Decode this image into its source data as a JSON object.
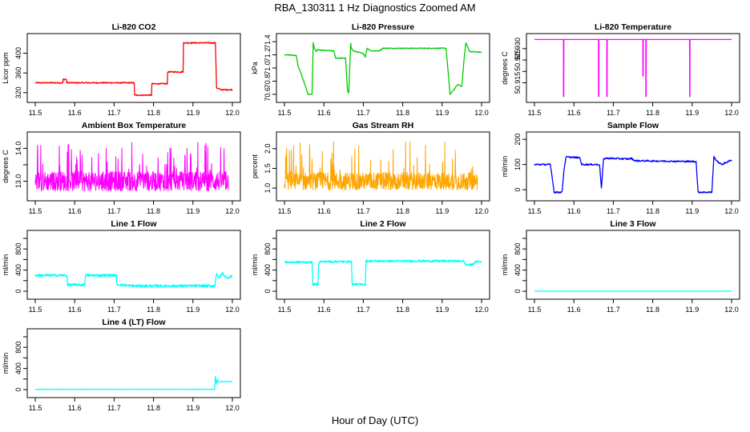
{
  "page": {
    "title": "RBA_130311  1 Hz Diagnostics Zoomed AM",
    "x_axis_title": "Hour of Day (UTC)"
  },
  "chart_data": [
    {
      "type": "line",
      "title": "Li-820 CO2",
      "ylabel": "Licor ppm",
      "color": "#ff0000",
      "xlim": [
        11.5,
        12.0
      ],
      "ylim": [
        310,
        430
      ],
      "xticks": [
        11.5,
        11.6,
        11.7,
        11.8,
        11.9,
        12.0
      ],
      "yticks": [
        320,
        360,
        400
      ],
      "xticklabels": [
        "11.5",
        "11.6",
        "11.7",
        "11.8",
        "11.9",
        "12.0"
      ],
      "yticklabels": [
        "320",
        "360",
        "400"
      ],
      "noise": 1.2,
      "series": [
        {
          "x": [
            11.5,
            11.57,
            11.571,
            11.579,
            11.58,
            11.751,
            11.752,
            11.795,
            11.796,
            11.835,
            11.836,
            11.875,
            11.876,
            11.957,
            11.96,
            11.97,
            12.0
          ],
          "y": [
            340,
            340,
            347,
            347,
            340,
            340,
            315,
            315,
            338,
            338,
            362,
            362,
            421,
            421,
            330,
            326,
            326
          ]
        }
      ]
    },
    {
      "type": "line",
      "title": "Li-820 Pressure",
      "ylabel": "kPa",
      "color": "#00cc00",
      "xlim": [
        11.5,
        12.0
      ],
      "ylim": [
        70.55,
        71.45
      ],
      "xticks": [
        11.5,
        11.6,
        11.7,
        11.8,
        11.9,
        12.0
      ],
      "yticks": [
        70.6,
        70.8,
        71.0,
        71.2,
        71.4
      ],
      "xticklabels": [
        "11.5",
        "11.6",
        "11.7",
        "11.8",
        "11.9",
        "12.0"
      ],
      "yticklabels": [
        "70.6",
        "70.8",
        "71.0",
        "71.2",
        "71.4"
      ],
      "noise": 0.006,
      "series": [
        {
          "x": [
            11.5,
            11.51,
            11.53,
            11.535,
            11.54,
            11.56,
            11.57,
            11.573,
            11.576,
            11.58,
            11.585,
            11.59,
            11.625,
            11.63,
            11.655,
            11.66,
            11.663,
            11.668,
            11.67,
            11.675,
            11.7,
            11.705,
            11.71,
            11.72,
            11.74,
            11.75,
            11.91,
            11.915,
            11.92,
            11.94,
            11.95,
            11.955,
            11.96,
            11.97,
            12.0
          ],
          "y": [
            71.2,
            71.2,
            71.19,
            71.02,
            70.95,
            70.6,
            70.6,
            71.38,
            71.3,
            71.25,
            71.28,
            71.27,
            71.26,
            71.15,
            71.15,
            70.65,
            70.62,
            71.38,
            71.3,
            71.26,
            71.22,
            71.17,
            71.3,
            71.26,
            71.26,
            71.3,
            71.3,
            70.95,
            70.6,
            70.75,
            70.72,
            71.1,
            71.38,
            71.25,
            71.24
          ]
        }
      ]
    },
    {
      "type": "line",
      "title": "Li-820 Temperature",
      "ylabel": "degrees C",
      "color": "#ff00ff",
      "xlim": [
        11.5,
        12.0
      ],
      "ylim": [
        50.9085,
        50.9345
      ],
      "xticks": [
        11.5,
        11.6,
        11.7,
        11.8,
        11.9,
        12.0
      ],
      "yticks": [
        50.915,
        50.92,
        50.925,
        50.93
      ],
      "xticklabels": [
        "11.5",
        "11.6",
        "11.7",
        "11.8",
        "11.9",
        "12.0"
      ],
      "yticklabels": [
        "50.915",
        "",
        "50.925",
        "50.930"
      ],
      "noise": 0,
      "series": [
        {
          "x": [
            11.5,
            11.5735,
            11.5736,
            11.5744,
            11.5745,
            11.6625,
            11.6626,
            11.6634,
            11.6635,
            11.6835,
            11.6836,
            11.6844,
            11.6845,
            11.775,
            11.7751,
            11.7759,
            11.776,
            11.7825,
            11.7826,
            11.7834,
            11.7835,
            11.8935,
            11.8936,
            11.8944,
            11.8945,
            12.0
          ],
          "y": [
            50.934,
            50.934,
            50.909,
            50.909,
            50.934,
            50.934,
            50.909,
            50.909,
            50.934,
            50.934,
            50.909,
            50.909,
            50.934,
            50.934,
            50.918,
            50.918,
            50.934,
            50.934,
            50.909,
            50.909,
            50.934,
            50.934,
            50.909,
            50.909,
            50.934,
            50.934
          ]
        }
      ]
    },
    {
      "type": "line",
      "title": "Ambient Box Temperature",
      "ylabel": "degrees C",
      "color": "#ff00ff",
      "xlim": [
        11.5,
        12.0
      ],
      "ylim": [
        12.55,
        14.35
      ],
      "xticks": [
        11.5,
        11.6,
        11.7,
        11.8,
        11.9,
        12.0
      ],
      "yticks": [
        13.0,
        13.5,
        14.0
      ],
      "xticklabels": [
        "11.5",
        "11.6",
        "11.7",
        "11.8",
        "11.9",
        "12.0"
      ],
      "yticklabels": [
        "13.0",
        "",
        "14.0"
      ],
      "band": {
        "low": 12.7,
        "high": 13.3,
        "spike_high": 14.2
      },
      "series": [
        {
          "x": [
            11.5,
            11.99
          ],
          "y": [
            13.0,
            13.0
          ]
        }
      ]
    },
    {
      "type": "line",
      "title": "Gas Stream RH",
      "ylabel": "percent",
      "color": "#ffa500",
      "xlim": [
        11.5,
        12.0
      ],
      "ylim": [
        0.8,
        2.3
      ],
      "xticks": [
        11.5,
        11.6,
        11.7,
        11.8,
        11.9,
        12.0
      ],
      "yticks": [
        1.0,
        1.5,
        2.0
      ],
      "xticklabels": [
        "11.5",
        "11.6",
        "11.7",
        "11.8",
        "11.9",
        "12.0"
      ],
      "yticklabels": [
        "1.0",
        "1.5",
        "2.0"
      ],
      "band": {
        "low": 0.95,
        "high": 1.4,
        "spike_high": 2.2
      },
      "series": [
        {
          "x": [
            11.5,
            11.99
          ],
          "y": [
            1.15,
            1.15
          ]
        }
      ]
    },
    {
      "type": "line",
      "title": "Sample Flow",
      "ylabel": "ml/min",
      "color": "#0000ff",
      "xlim": [
        11.5,
        12.0
      ],
      "ylim": [
        -25,
        210
      ],
      "xticks": [
        11.5,
        11.6,
        11.7,
        11.8,
        11.9,
        12.0
      ],
      "yticks": [
        0,
        100,
        200
      ],
      "xticklabels": [
        "11.5",
        "11.6",
        "11.7",
        "11.8",
        "11.9",
        "12.0"
      ],
      "yticklabels": [
        "0",
        "100",
        "200"
      ],
      "noise": 3,
      "series": [
        {
          "x": [
            11.5,
            11.54,
            11.545,
            11.55,
            11.57,
            11.575,
            11.58,
            11.615,
            11.62,
            11.665,
            11.67,
            11.675,
            11.68,
            11.74,
            11.745,
            11.755,
            11.9,
            11.91,
            11.915,
            11.95,
            11.955,
            11.965,
            11.975,
            12.0
          ],
          "y": [
            100,
            100,
            50,
            -10,
            -10,
            80,
            130,
            127,
            100,
            100,
            5,
            120,
            125,
            122,
            125,
            115,
            112,
            112,
            -10,
            -10,
            130,
            110,
            100,
            118
          ]
        }
      ]
    },
    {
      "type": "line",
      "title": "Line 1 Flow",
      "ylabel": "ml/min",
      "color": "#00ffff",
      "xlim": [
        11.5,
        12.0
      ],
      "ylim": [
        -60,
        1060
      ],
      "xticks": [
        11.5,
        11.6,
        11.7,
        11.8,
        11.9,
        12.0
      ],
      "yticks": [
        0,
        200,
        400,
        600,
        800,
        1000
      ],
      "xticklabels": [
        "11.5",
        "11.6",
        "11.7",
        "11.8",
        "11.9",
        "12.0"
      ],
      "yticklabels": [
        "0",
        "",
        "400",
        "",
        "800",
        ""
      ],
      "noise": 25,
      "series": [
        {
          "x": [
            11.5,
            11.58,
            11.582,
            11.625,
            11.627,
            11.705,
            11.707,
            11.745,
            11.75,
            11.955,
            11.96,
            11.965,
            11.975,
            11.985,
            12.0
          ],
          "y": [
            300,
            300,
            120,
            120,
            300,
            300,
            130,
            100,
            100,
            100,
            340,
            240,
            340,
            250,
            290
          ]
        }
      ]
    },
    {
      "type": "line",
      "title": "Line 2 Flow",
      "ylabel": "ml/min",
      "color": "#00ffff",
      "xlim": [
        11.5,
        12.0
      ],
      "ylim": [
        -60,
        1060
      ],
      "xticks": [
        11.5,
        11.6,
        11.7,
        11.8,
        11.9,
        12.0
      ],
      "yticks": [
        0,
        200,
        400,
        600,
        800,
        1000
      ],
      "xticklabels": [
        "11.5",
        "11.6",
        "11.7",
        "11.8",
        "11.9",
        "12.0"
      ],
      "yticklabels": [
        "0",
        "",
        "400",
        "",
        "800",
        ""
      ],
      "noise": 20,
      "series": [
        {
          "x": [
            11.5,
            11.57,
            11.572,
            11.585,
            11.587,
            11.67,
            11.672,
            11.705,
            11.707,
            11.955,
            11.96,
            11.975,
            11.99,
            12.0
          ],
          "y": [
            550,
            550,
            130,
            130,
            560,
            560,
            130,
            130,
            570,
            570,
            500,
            500,
            570,
            550
          ]
        }
      ]
    },
    {
      "type": "line",
      "title": "Line 3 Flow",
      "ylabel": "ml/min",
      "color": "#00ffff",
      "xlim": [
        11.5,
        12.0
      ],
      "ylim": [
        -60,
        1060
      ],
      "xticks": [
        11.5,
        11.6,
        11.7,
        11.8,
        11.9,
        12.0
      ],
      "yticks": [
        0,
        200,
        400,
        600,
        800,
        1000
      ],
      "xticklabels": [
        "11.5",
        "11.6",
        "11.7",
        "11.8",
        "11.9",
        "12.0"
      ],
      "yticklabels": [
        "0",
        "",
        "400",
        "",
        "800",
        ""
      ],
      "noise": 0,
      "series": [
        {
          "x": [
            11.5,
            12.0
          ],
          "y": [
            2,
            2
          ]
        }
      ]
    },
    {
      "type": "line",
      "title": "Line 4 (LT) Flow",
      "ylabel": "ml/min",
      "color": "#00ffff",
      "xlim": [
        11.5,
        12.0
      ],
      "ylim": [
        -60,
        1060
      ],
      "xticks": [
        11.5,
        11.6,
        11.7,
        11.8,
        11.9,
        12.0
      ],
      "yticks": [
        0,
        200,
        400,
        600,
        800,
        1000
      ],
      "xticklabels": [
        "11.5",
        "11.6",
        "11.7",
        "11.8",
        "11.9",
        "12.0"
      ],
      "yticklabels": [
        "0",
        "",
        "400",
        "",
        "800",
        ""
      ],
      "noise": 3,
      "series": [
        {
          "x": [
            11.5,
            11.955,
            11.957,
            11.96,
            11.962,
            11.965,
            12.0
          ],
          "y": [
            5,
            5,
            250,
            100,
            190,
            150,
            150
          ]
        }
      ]
    }
  ]
}
